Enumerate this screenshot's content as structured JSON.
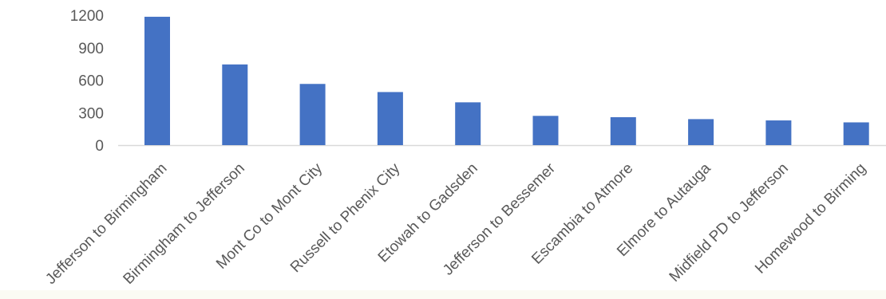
{
  "chart_data": {
    "type": "bar",
    "title": "",
    "xlabel": "",
    "ylabel": "",
    "categories": [
      "Jefferson to Birmingham",
      "Birmingham to Jefferson",
      "Mont Co to Mont City",
      "Russell to Phenix City",
      "Etowah to Gadsden",
      "Jefferson to Bessemer",
      "Escambia to Atmore",
      "Elmore to Autauga",
      "Midfield PD to Jefferson",
      "Homewood to Birming"
    ],
    "values": [
      1185,
      745,
      565,
      490,
      395,
      270,
      258,
      240,
      228,
      210
    ],
    "ylim": [
      0,
      1200
    ],
    "yticks": [
      "0",
      "300",
      "600",
      "900",
      "1200"
    ],
    "bar_color": "#4472c4",
    "axis_color": "#d9d9d9",
    "grid": false,
    "legend": "none"
  }
}
